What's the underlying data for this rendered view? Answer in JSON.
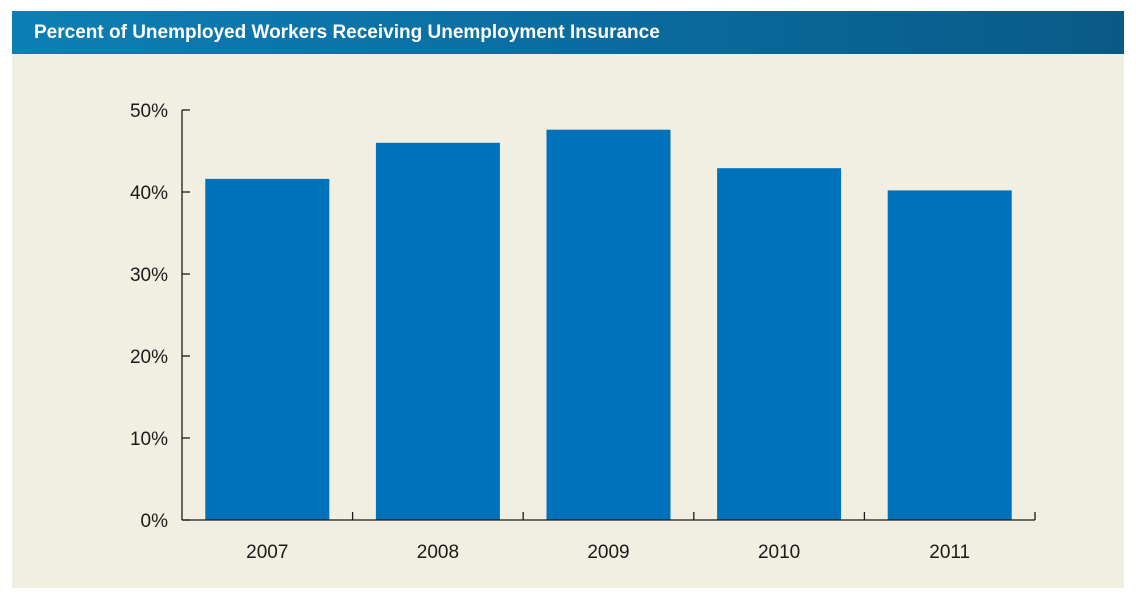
{
  "chart_data": {
    "type": "bar",
    "title": "Percent of Unemployed Workers Receiving Unemployment Insurance",
    "categories": [
      "2007",
      "2008",
      "2009",
      "2010",
      "2011"
    ],
    "values": [
      41.6,
      46.0,
      47.6,
      42.9,
      40.2
    ],
    "ylim": [
      0,
      50
    ],
    "yticks": [
      0,
      10,
      20,
      30,
      40,
      50
    ],
    "ytick_labels": [
      "0%",
      "10%",
      "20%",
      "30%",
      "40%",
      "50%"
    ],
    "xlabel": "",
    "ylabel": "",
    "grid": false,
    "legend": "none"
  },
  "colors": {
    "bar": "#0071bb",
    "panel_background": "#f1efe2",
    "title_bar": "#0a6ba0",
    "axis": "#1a1a1a"
  }
}
